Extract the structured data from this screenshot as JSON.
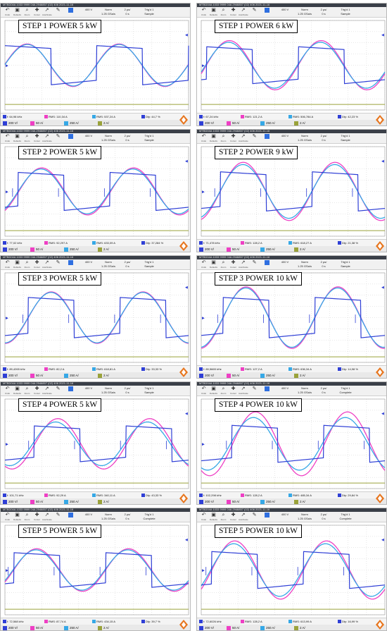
{
  "colors": {
    "voltage": "#2f3fd6",
    "current_magenta": "#ee3fc4",
    "current_cyan": "#36a8e6",
    "ch4": "#9aa23a",
    "ch2": "#ee3fc4",
    "ch3": "#36a8e6"
  },
  "icons": [
    "undo-icon",
    "run-stop-icon",
    "zoom-icon",
    "cursor-icon",
    "auto-icon",
    "pen-icon",
    "scope-logo-icon"
  ],
  "panels": [
    {
      "caption": "STEP 1 POWER 5 kW",
      "topbar": "MTBD04A 1033 9999 04A 2946857 (02) 406 2021-11-16",
      "toolbar": {
        "buttons": [
          "Undo",
          "Defaults",
          "Zoom",
          "Cursor",
          "AutoScale"
        ],
        "scale": "400 V",
        "rate": "1.25 GSa/s",
        "norm": "Norm",
        "delay": "0 s",
        "timebase": "2 µs/",
        "mode": "Sample",
        "trigger": "Trig'd 1"
      },
      "measurements": [
        {
          "text": "f: 64,98 kHz"
        },
        {
          "text": "RMS: 110,34 A"
        },
        {
          "text": "RMS: 537,24 A"
        },
        {
          "text": "Dty: 44,7 %"
        }
      ],
      "channels": [
        "200 V/",
        "50 A/",
        "250 A/",
        "2 A/"
      ],
      "chart_data": {
        "type": "line",
        "x_range": [
          0,
          20
        ],
        "y_range": [
          -4,
          4
        ],
        "phase": 0.0,
        "voltage_amp": 1.5,
        "currents": [
          {
            "amp": 1.9,
            "phase": -0.05,
            "color": "magenta"
          },
          {
            "amp": 1.85,
            "phase": -0.03,
            "color": "cyan"
          }
        ],
        "spike": false
      }
    },
    {
      "caption": "STEP 1 POWER 6 kW",
      "topbar": "MTBD04A 1033 9999 04A 2946857 (02) 406 2021-11-16",
      "toolbar": {
        "buttons": [
          "Undo",
          "Defaults",
          "Zoom",
          "Cursor",
          "AutoScale"
        ],
        "scale": "400 V",
        "rate": "1.25 GSa/s",
        "norm": "Norm",
        "delay": "0 s",
        "timebase": "2 µs/",
        "mode": "Sample",
        "trigger": "Trig'd 1"
      },
      "measurements": [
        {
          "text": "f: 67,24 kHz"
        },
        {
          "text": "RMS: 121,2 A"
        },
        {
          "text": "RMS: 506,784 A"
        },
        {
          "text": "Dty: 42,23 %"
        }
      ],
      "channels": [
        "200 V/",
        "50 A/",
        "250 A/",
        "2 A/"
      ],
      "chart_data": {
        "type": "line",
        "x_range": [
          0,
          20
        ],
        "y_range": [
          -4,
          4
        ],
        "phase": 0.35,
        "voltage_amp": 1.4,
        "currents": [
          {
            "amp": 2.2,
            "phase": 0.35,
            "color": "magenta"
          },
          {
            "amp": 2.05,
            "phase": 0.3,
            "color": "cyan"
          }
        ],
        "spike": false
      }
    },
    {
      "caption": "STEP 2 POWER 5 kW",
      "topbar": "MTBD04A 1033 9999 04A 2946857 (02) 406 2021-11-16",
      "toolbar": {
        "buttons": [
          "Undo",
          "Defaults",
          "Zoom",
          "Cursor",
          "AutoScale"
        ],
        "scale": "400 V",
        "rate": "1.25 GSa/s",
        "norm": "Norm",
        "delay": "0 s",
        "timebase": "2 µs/",
        "mode": "Sample",
        "trigger": "Trig'd 1"
      },
      "measurements": [
        {
          "text": "f: 77,02 kHz"
        },
        {
          "text": "RMS: 92,297 A"
        },
        {
          "text": "RMS: 633,09 A"
        },
        {
          "text": "Dty: 37,284 %"
        }
      ],
      "channels": [
        "200 V/",
        "50 A/",
        "250 A/",
        "2 A/"
      ],
      "chart_data": {
        "type": "line",
        "x_range": [
          0,
          20
        ],
        "y_range": [
          -4,
          4
        ],
        "phase": 0.9,
        "voltage_amp": 1.45,
        "currents": [
          {
            "amp": 2.1,
            "phase": 0.95,
            "color": "magenta"
          },
          {
            "amp": 2.0,
            "phase": 0.9,
            "color": "cyan"
          }
        ],
        "spike": true
      }
    },
    {
      "caption": "STEP 2 POWER 9 kW",
      "topbar": "MTBD04A 1033 9999 04A 2946857 (02) 406 2021-11-16",
      "toolbar": {
        "buttons": [
          "Undo",
          "Defaults",
          "Zoom",
          "Cursor",
          "AutoScale"
        ],
        "scale": "400 V",
        "rate": "1.25 GSa/s",
        "norm": "Norm",
        "delay": "0 s",
        "timebase": "2 µs/",
        "mode": "Sample",
        "trigger": "Trig'd 1"
      },
      "measurements": [
        {
          "text": "f: 71,478 kHz"
        },
        {
          "text": "RMS: 128,2 A"
        },
        {
          "text": "RMS: 618,27 A"
        },
        {
          "text": "Dty: 21,38 %"
        }
      ],
      "channels": [
        "200 V/",
        "50 A/",
        "250 A/",
        "2 A/"
      ],
      "chart_data": {
        "type": "line",
        "x_range": [
          0,
          20
        ],
        "y_range": [
          -4,
          4
        ],
        "phase": 1.3,
        "voltage_amp": 1.5,
        "currents": [
          {
            "amp": 2.6,
            "phase": 1.3,
            "color": "magenta"
          },
          {
            "amp": 2.4,
            "phase": 1.28,
            "color": "cyan"
          }
        ],
        "spike": true
      }
    },
    {
      "caption": "STEP 3 POWER 5 kW",
      "topbar": "MTBD04A 1033 9999 04A 2946857 (02) 406 2021-11-16",
      "toolbar": {
        "buttons": [
          "Undo",
          "Defaults",
          "Zoom",
          "Cursor",
          "AutoScale"
        ],
        "scale": "400 V",
        "rate": "1.25 GSa/s",
        "norm": "Norm",
        "delay": "0 s",
        "timebase": "2 µs/",
        "mode": "Sample",
        "trigger": "Trig'd 1"
      },
      "measurements": [
        {
          "text": "f: 89,4265 kHz"
        },
        {
          "text": "RMS: 82,2 A"
        },
        {
          "text": "RMS: 618,81 A"
        },
        {
          "text": "Dty: 33,33 %"
        }
      ],
      "channels": [
        "200 V/",
        "50 A/",
        "250 A/",
        "2 A/"
      ],
      "chart_data": {
        "type": "line",
        "x_range": [
          0,
          20
        ],
        "y_range": [
          -4,
          4
        ],
        "phase": 1.6,
        "voltage_amp": 1.55,
        "currents": [
          {
            "amp": 2.3,
            "phase": 1.6,
            "color": "magenta"
          },
          {
            "amp": 2.25,
            "phase": 1.58,
            "color": "cyan"
          }
        ],
        "spike": true
      }
    },
    {
      "caption": "STEP 3 POWER 10 kW",
      "topbar": "MTBD04A 1033 9999 04A 2946857 (02) 406 2021-11-16",
      "toolbar": {
        "buttons": [
          "Undo",
          "Defaults",
          "Zoom",
          "Cursor",
          "AutoScale"
        ],
        "scale": "400 V",
        "rate": "1.25 GSa/s",
        "norm": "Norm",
        "delay": "0 s",
        "timebase": "2 µs/",
        "mode": "Sample",
        "trigger": "Trig'd 1"
      },
      "measurements": [
        {
          "text": "f: 89,5665 kHz"
        },
        {
          "text": "RMS: 127,2 A"
        },
        {
          "text": "RMS: 636,34 A"
        },
        {
          "text": "Dty: 14,98 %"
        }
      ],
      "channels": [
        "200 V/",
        "50 A/",
        "250 A/",
        "2 A/"
      ],
      "chart_data": {
        "type": "line",
        "x_range": [
          0,
          20
        ],
        "y_range": [
          -4,
          4
        ],
        "phase": 1.5,
        "voltage_amp": 1.55,
        "currents": [
          {
            "amp": 2.75,
            "phase": 1.5,
            "color": "magenta"
          },
          {
            "amp": 2.65,
            "phase": 1.48,
            "color": "cyan"
          }
        ],
        "spike": true
      }
    },
    {
      "caption": "STEP 4 POWER 5 kW",
      "topbar": "MTBD04A 1033 9999 04A 2946857 (02) 406 2021-11-16",
      "toolbar": {
        "buttons": [
          "Undo",
          "Defaults",
          "Zoom",
          "Cursor",
          "AutoScale"
        ],
        "scale": "400 V",
        "rate": "1.25 GSa/s",
        "norm": "Norm",
        "delay": "0 s",
        "timebase": "2 µs/",
        "mode": "Sample",
        "trigger": "Trig'd 1"
      },
      "measurements": [
        {
          "text": "f: 101,71 kHz"
        },
        {
          "text": "RMS: 92,29 A"
        },
        {
          "text": "RMS: 340,11 A"
        },
        {
          "text": "Dty: 43,33 %"
        }
      ],
      "channels": [
        "200 V/",
        "50 A/",
        "250 A/",
        "2 A/"
      ],
      "chart_data": {
        "type": "line",
        "x_range": [
          0,
          20
        ],
        "y_range": [
          -4,
          4
        ],
        "phase": 2.0,
        "voltage_amp": 1.35,
        "currents": [
          {
            "amp": 2.25,
            "phase": 2.05,
            "color": "magenta"
          },
          {
            "amp": 1.95,
            "phase": 1.9,
            "color": "cyan"
          }
        ],
        "spike": true
      }
    },
    {
      "caption": "STEP 4 POWER 10 kW",
      "topbar": "MTBD04A 1033 9999 04A 2946857 (02) 406 2021-11-16",
      "toolbar": {
        "buttons": [
          "Undo",
          "Defaults",
          "Zoom",
          "Cursor",
          "AutoScale"
        ],
        "scale": "400 V",
        "rate": "1.25 GSa/s",
        "norm": "Norm",
        "delay": "0 s",
        "timebase": "2 µs/",
        "mode": "Complete",
        "trigger": "Trig'd 1"
      },
      "measurements": [
        {
          "text": "f: 102,298 kHz"
        },
        {
          "text": "RMS: 128,2 A"
        },
        {
          "text": "RMS: 485,34 A"
        },
        {
          "text": "Dty: 29,84 %"
        }
      ],
      "channels": [
        "200 V/",
        "50 A/",
        "250 A/",
        "2 A/"
      ],
      "chart_data": {
        "type": "line",
        "x_range": [
          0,
          20
        ],
        "y_range": [
          -4,
          4
        ],
        "phase": 2.1,
        "voltage_amp": 1.4,
        "currents": [
          {
            "amp": 2.85,
            "phase": 2.15,
            "color": "magenta"
          },
          {
            "amp": 2.35,
            "phase": 2.0,
            "color": "cyan"
          }
        ],
        "spike": true
      }
    },
    {
      "caption": "STEP 5 POWER 5 kW",
      "topbar": "MTBD04A 1033 9999 04A 2946857 (02) 406 2021-11-16",
      "toolbar": {
        "buttons": [
          "Undo",
          "Defaults",
          "Zoom",
          "Cursor",
          "AutoScale"
        ],
        "scale": "400 V",
        "rate": "1.25 GSa/s",
        "norm": "Norm",
        "delay": "0 s",
        "timebase": "2 µs/",
        "mode": "Complete",
        "trigger": "Trig'd 1"
      },
      "measurements": [
        {
          "text": "f: 72,568 kHz"
        },
        {
          "text": "RMS: 87,74 A"
        },
        {
          "text": "RMS: 434,15 A"
        },
        {
          "text": "Dty: 39,7 %"
        }
      ],
      "channels": [
        "200 V/",
        "50 A/",
        "250 A/",
        "2 A/"
      ],
      "chart_data": {
        "type": "line",
        "x_range": [
          0,
          20
        ],
        "y_range": [
          -4,
          4
        ],
        "phase": 0.6,
        "voltage_amp": 1.3,
        "currents": [
          {
            "amp": 1.9,
            "phase": 0.6,
            "color": "magenta"
          },
          {
            "amp": 1.8,
            "phase": 0.55,
            "color": "cyan"
          }
        ],
        "spike": true
      }
    },
    {
      "caption": "STEP 5 POWER 10 kW",
      "topbar": "MTBD04A 1033 9999 04A 2946857 (02) 406 2021-11-16",
      "toolbar": {
        "buttons": [
          "Undo",
          "Defaults",
          "Zoom",
          "Cursor",
          "AutoScale"
        ],
        "scale": "400 V",
        "rate": "1.25 GSa/s",
        "norm": "Norm",
        "delay": "0 s",
        "timebase": "2 µs/",
        "mode": "Complete",
        "trigger": "Trig'd 1"
      },
      "measurements": [
        {
          "text": "f: 72,6026 kHz"
        },
        {
          "text": "RMS: 128,2 A"
        },
        {
          "text": "RMS: 613,99 A"
        },
        {
          "text": "Dty: 16,99 %"
        }
      ],
      "channels": [
        "200 V/",
        "50 A/",
        "250 A/",
        "2 A/"
      ],
      "chart_data": {
        "type": "line",
        "x_range": [
          0,
          20
        ],
        "y_range": [
          -4,
          4
        ],
        "phase": 0.7,
        "voltage_amp": 1.4,
        "currents": [
          {
            "amp": 2.6,
            "phase": 0.72,
            "color": "magenta"
          },
          {
            "amp": 2.35,
            "phase": 0.65,
            "color": "cyan"
          }
        ],
        "spike": true
      }
    }
  ]
}
